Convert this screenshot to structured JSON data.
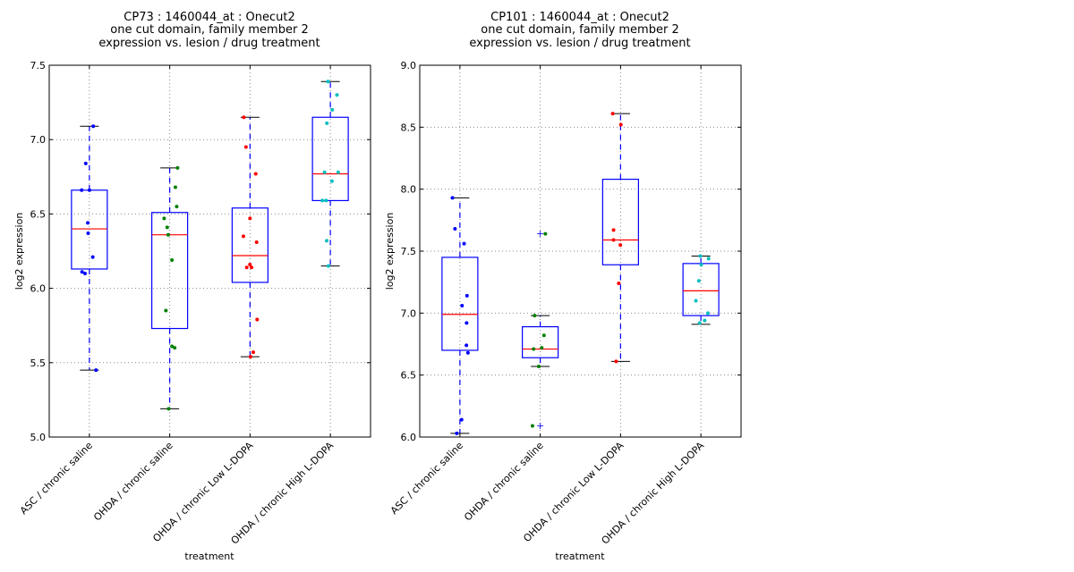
{
  "chart_data": [
    {
      "type": "box",
      "title": [
        "CP73 : 1460044_at : Onecut2",
        "one cut domain, family member 2",
        "expression vs. lesion / drug treatment"
      ],
      "xlabel": "treatment",
      "ylabel": "log2 expression",
      "ylim": [
        5.0,
        7.5
      ],
      "yticks": [
        5.0,
        5.5,
        6.0,
        6.5,
        7.0,
        7.5
      ],
      "ytick_labels": [
        "5.0",
        "5.5",
        "6.0",
        "6.5",
        "7.0",
        "7.5"
      ],
      "grid": true,
      "categories": [
        "ASC / chronic saline",
        "OHDA / chronic saline",
        "OHDA / chronic Low L-DOPA",
        "OHDA / chronic High L-DOPA"
      ],
      "groups": [
        {
          "color": "#0000ff",
          "whisker_low": 5.45,
          "q1": 6.13,
          "median": 6.4,
          "q3": 6.66,
          "whisker_high": 7.09,
          "outliers": [],
          "points": [
            7.09,
            6.84,
            6.66,
            6.66,
            6.44,
            6.37,
            6.21,
            6.11,
            6.1,
            5.45
          ]
        },
        {
          "color": "#008000",
          "whisker_low": 5.19,
          "q1": 5.73,
          "median": 6.36,
          "q3": 6.51,
          "whisker_high": 6.81,
          "outliers": [],
          "points": [
            6.81,
            6.68,
            6.55,
            6.47,
            6.41,
            6.36,
            6.19,
            5.85,
            5.61,
            5.6,
            5.19
          ]
        },
        {
          "color": "#ff0000",
          "whisker_low": 5.54,
          "q1": 6.04,
          "median": 6.22,
          "q3": 6.54,
          "whisker_high": 7.15,
          "outliers": [],
          "points": [
            7.15,
            6.95,
            6.77,
            6.47,
            6.35,
            6.31,
            6.16,
            6.14,
            6.14,
            5.79,
            5.57,
            5.54
          ]
        },
        {
          "color": "#00bfbf",
          "whisker_low": 6.15,
          "q1": 6.59,
          "median": 6.77,
          "q3": 7.15,
          "whisker_high": 7.39,
          "outliers": [],
          "points": [
            7.39,
            7.3,
            7.2,
            7.11,
            6.78,
            6.78,
            6.72,
            6.59,
            6.59,
            6.32,
            6.15
          ]
        }
      ]
    },
    {
      "type": "box",
      "title": [
        "CP101 : 1460044_at : Onecut2",
        "one cut domain, family member 2",
        "expression vs. lesion / drug treatment"
      ],
      "xlabel": "treatment",
      "ylabel": "log2 expression",
      "ylim": [
        6.0,
        9.0
      ],
      "yticks": [
        6.0,
        6.5,
        7.0,
        7.5,
        8.0,
        8.5,
        9.0
      ],
      "ytick_labels": [
        "6.0",
        "6.5",
        "7.0",
        "7.5",
        "8.0",
        "8.5",
        "9.0"
      ],
      "grid": true,
      "categories": [
        "ASC / chronic saline",
        "OHDA / chronic saline",
        "OHDA / chronic Low L-DOPA",
        "OHDA / chronic High L-DOPA"
      ],
      "groups": [
        {
          "color": "#0000ff",
          "whisker_low": 6.03,
          "q1": 6.7,
          "median": 6.99,
          "q3": 7.45,
          "whisker_high": 7.93,
          "outliers": [],
          "points": [
            7.93,
            7.68,
            7.56,
            7.14,
            7.06,
            6.92,
            6.74,
            6.68,
            6.14,
            6.03
          ]
        },
        {
          "color": "#008000",
          "whisker_low": 6.57,
          "q1": 6.64,
          "median": 6.71,
          "q3": 6.89,
          "whisker_high": 6.98,
          "outliers": [
            7.64,
            6.09
          ],
          "points": [
            7.64,
            6.98,
            6.82,
            6.72,
            6.71,
            6.57,
            6.09
          ]
        },
        {
          "color": "#ff0000",
          "whisker_low": 6.61,
          "q1": 7.39,
          "median": 7.59,
          "q3": 8.08,
          "whisker_high": 8.61,
          "outliers": [],
          "points": [
            8.61,
            8.52,
            7.67,
            7.59,
            7.55,
            7.24,
            6.61
          ]
        },
        {
          "color": "#00bfbf",
          "whisker_low": 6.91,
          "q1": 6.98,
          "median": 7.18,
          "q3": 7.4,
          "whisker_high": 7.46,
          "outliers": [],
          "points": [
            7.46,
            7.44,
            7.39,
            7.26,
            7.1,
            7.0,
            6.94,
            6.92
          ]
        }
      ]
    }
  ]
}
